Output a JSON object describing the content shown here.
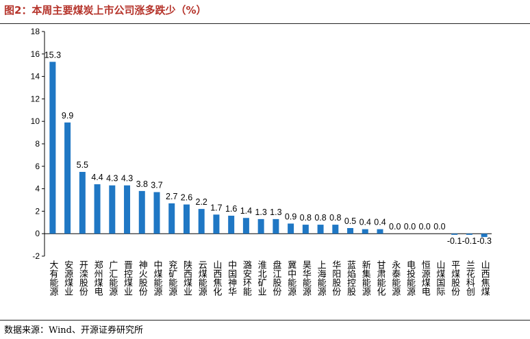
{
  "title": "图2：本周主要煤炭上市公司涨多跌少（%）",
  "source": "数据来源：Wind、开源证券研究所",
  "chart_data": {
    "type": "bar",
    "title": "本周主要煤炭上市公司涨多跌少（%）",
    "xlabel": "",
    "ylabel": "",
    "ylim": [
      -2,
      18
    ],
    "yticks": [
      -2,
      0,
      2,
      4,
      6,
      8,
      10,
      12,
      14,
      16,
      18
    ],
    "grid": false,
    "bar_color": "#1f77c4",
    "categories": [
      "大有能源",
      "安源煤业",
      "开滦股份",
      "郑州煤电",
      "广汇能源",
      "晋控煤业",
      "神火股份",
      "中煤能源",
      "兖矿能源",
      "陕西煤业",
      "云煤能源",
      "山西焦化",
      "中国神华",
      "潞安环能",
      "淮北矿业",
      "盘江股份",
      "冀中能源",
      "昊华能源",
      "上海能源",
      "华阳股份",
      "蓝焰控股",
      "新集能源",
      "甘肃能化",
      "永泰能源",
      "电投能源",
      "恒源煤电",
      "山煤国际",
      "平煤股份",
      "兰花科创",
      "山西焦煤"
    ],
    "values": [
      15.3,
      9.9,
      5.5,
      4.4,
      4.3,
      4.3,
      3.8,
      3.7,
      2.7,
      2.6,
      2.2,
      1.7,
      1.6,
      1.4,
      1.3,
      1.3,
      0.9,
      0.8,
      0.8,
      0.8,
      0.5,
      0.4,
      0.4,
      0.0,
      0.0,
      0.0,
      0.0,
      -0.1,
      -0.1,
      -0.3
    ],
    "data_labels": [
      "15.3",
      "9.9",
      "5.5",
      "4.4",
      "4.3",
      "4.3",
      "3.8",
      "3.7",
      "2.7",
      "2.6",
      "2.2",
      "1.7",
      "1.6",
      "1.4",
      "1.3",
      "1.3",
      "0.9",
      "0.8",
      "0.8",
      "0.8",
      "0.5",
      "0.4",
      "0.4",
      "0.0",
      "0.0",
      "0.0",
      "0.0",
      "-0.1",
      "-0.1",
      "-0.3"
    ]
  }
}
